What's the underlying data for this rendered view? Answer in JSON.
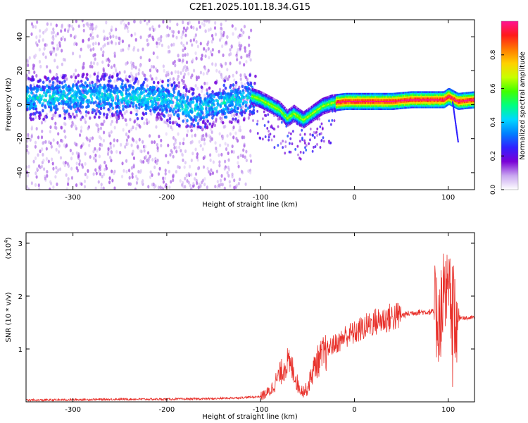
{
  "figure_title": "C2E1.2025.101.18.34.G15",
  "chart_data": [
    {
      "type": "heatmap",
      "xlabel": "Height of straight line (km)",
      "ylabel": "Frequency (Hz)",
      "xlim": [
        -350,
        128
      ],
      "ylim": [
        -50,
        50
      ],
      "xticks": [
        "-300",
        "-200",
        "-100",
        "0",
        "100"
      ],
      "xtick_values": [
        -300,
        -200,
        -100,
        0,
        100
      ],
      "yticks": [
        "-40",
        "-20",
        "0",
        "20",
        "40"
      ],
      "ytick_values": [
        -40,
        -20,
        0,
        20,
        40
      ],
      "colorbar": {
        "label": "Normalized spectral amplitude",
        "range": [
          0,
          1
        ],
        "ticks": [
          "0.0",
          "0.2",
          "0.4",
          "0.6",
          "0.8"
        ],
        "tick_values": [
          0.0,
          0.2,
          0.4,
          0.6,
          0.8
        ],
        "colormap": "rainbow",
        "stops": [
          "#ffffff",
          "#c9a7f0",
          "#7a00d6",
          "#3020ff",
          "#0080ff",
          "#00d8ff",
          "#00ff80",
          "#40ff00",
          "#c8ff00",
          "#ffd000",
          "#ff7a00",
          "#ff1a1a",
          "#ff1493"
        ]
      },
      "ridge": {
        "x": [
          -350,
          -300,
          -250,
          -200,
          -170,
          -150,
          -120,
          -110,
          -100,
          -90,
          -80,
          -72,
          -65,
          -55,
          -45,
          -35,
          -25,
          -10,
          0,
          20,
          40,
          60,
          80,
          95,
          100,
          110,
          128
        ],
        "y": [
          4,
          5,
          5,
          3,
          -3,
          0,
          3,
          5,
          3,
          0,
          -3,
          -8,
          -5,
          -9,
          -5,
          -1,
          1,
          2,
          2,
          2,
          2,
          3,
          3,
          3,
          5,
          2,
          3
        ]
      }
    },
    {
      "type": "line",
      "xlabel": "Height of straight line (km)",
      "ylabel": "SNR (10 * v/v)",
      "yscale_label": "(x10",
      "yscale_exp": "4",
      "yscale_close": ")",
      "xlim": [
        -350,
        128
      ],
      "ylim": [
        0,
        3.2
      ],
      "xticks": [
        "-300",
        "-200",
        "-100",
        "0",
        "100"
      ],
      "xtick_values": [
        -300,
        -200,
        -100,
        0,
        100
      ],
      "yticks": [
        "1",
        "2",
        "3"
      ],
      "ytick_values": [
        1,
        2,
        3
      ],
      "series": [
        {
          "color": "#e8302a",
          "x": [
            -350,
            -300,
            -250,
            -200,
            -150,
            -120,
            -100,
            -90,
            -80,
            -72,
            -65,
            -60,
            -55,
            -50,
            -45,
            -40,
            -35,
            -30,
            -25,
            -20,
            -15,
            -10,
            0,
            10,
            20,
            30,
            40,
            50,
            60,
            70,
            80,
            85,
            90,
            95,
            100,
            105,
            110,
            115,
            120,
            128
          ],
          "y": [
            0.03,
            0.04,
            0.05,
            0.05,
            0.06,
            0.08,
            0.1,
            0.2,
            0.5,
            0.75,
            0.6,
            0.3,
            0.2,
            0.25,
            0.55,
            0.75,
            0.85,
            0.95,
            1.05,
            1.1,
            1.15,
            1.25,
            1.3,
            1.4,
            1.5,
            1.55,
            1.6,
            1.63,
            1.68,
            1.7,
            1.7,
            1.7,
            1.6,
            1.8,
            2.0,
            1.7,
            1.6,
            1.6,
            1.58,
            1.6
          ]
        }
      ]
    }
  ]
}
